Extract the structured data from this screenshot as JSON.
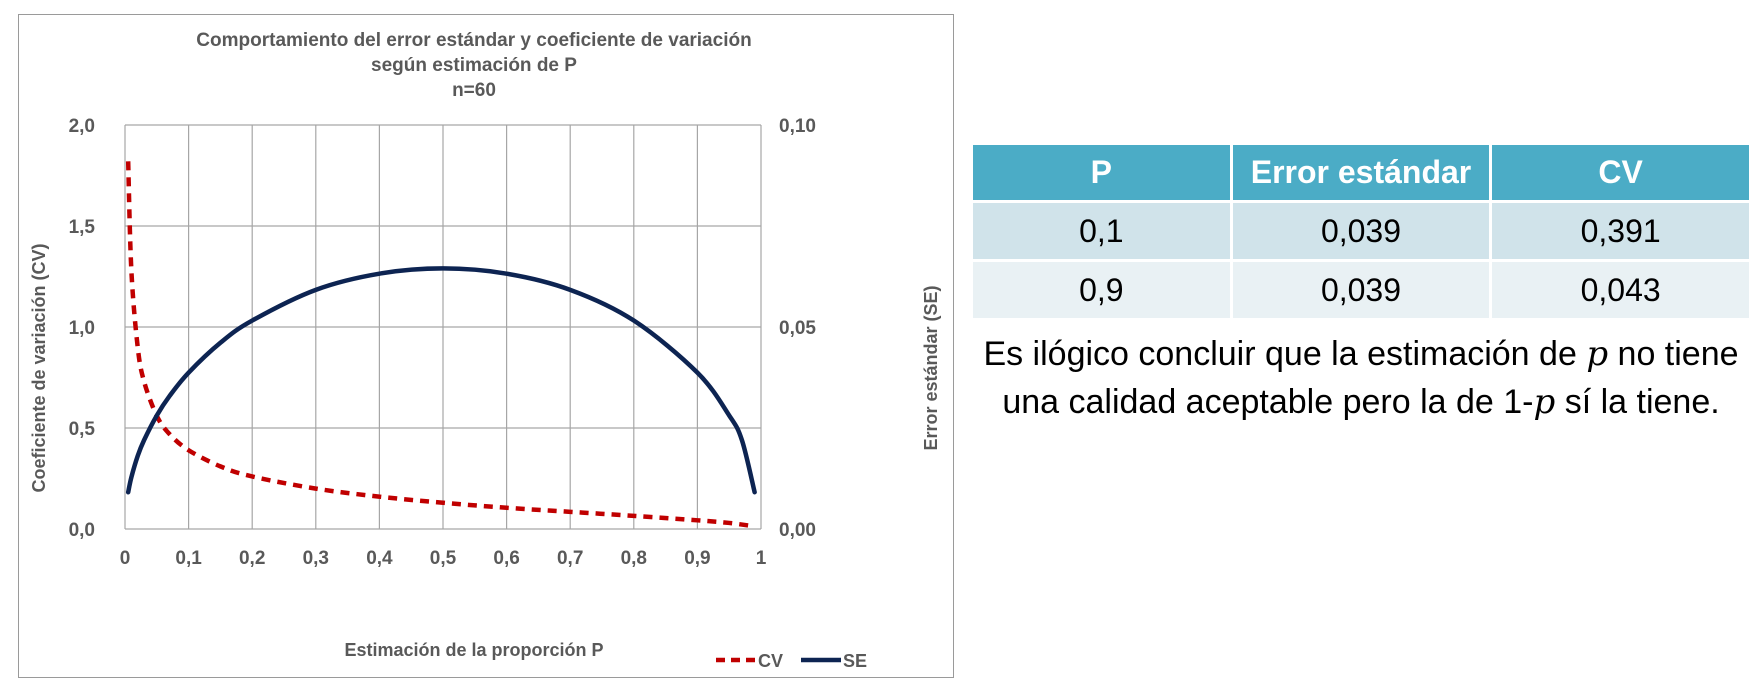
{
  "chart_data": {
    "type": "line",
    "title": [
      "Comportamiento del error estándar y coeficiente de variación",
      "según estimación de P",
      "n=60"
    ],
    "xlabel": "Estimación de la proporción P",
    "ylabel_left": "Coeficiente de variación (CV)",
    "ylabel_right": "Error estándar (SE)",
    "xlim": [
      0,
      1
    ],
    "ylim_left": [
      0,
      2
    ],
    "ylim_right": [
      0,
      0.1
    ],
    "x_ticks": [
      "0",
      "0,1",
      "0,2",
      "0,3",
      "0,4",
      "0,5",
      "0,6",
      "0,7",
      "0,8",
      "0,9",
      "1"
    ],
    "y_left_ticks": [
      "0,0",
      "0,5",
      "1,0",
      "1,5",
      "2,0"
    ],
    "y_right_ticks": [
      "0,00",
      "0,05",
      "0,10"
    ],
    "grid": true,
    "legend_position": "bottom-right",
    "n": 60,
    "series": [
      {
        "name": "CV",
        "axis": "left",
        "style": "dashed",
        "color": "#c00000",
        "x": [
          0.005,
          0.01,
          0.02,
          0.03,
          0.05,
          0.07,
          0.1,
          0.15,
          0.2,
          0.3,
          0.4,
          0.5,
          0.6,
          0.7,
          0.8,
          0.9,
          0.95,
          0.99
        ],
        "values": [
          1.82,
          1.28,
          0.9,
          0.73,
          0.56,
          0.47,
          0.39,
          0.31,
          0.26,
          0.2,
          0.16,
          0.13,
          0.105,
          0.085,
          0.065,
          0.043,
          0.03,
          0.013
        ]
      },
      {
        "name": "SE",
        "axis": "right",
        "style": "solid",
        "color": "#0d2452",
        "x": [
          0.005,
          0.01,
          0.02,
          0.03,
          0.05,
          0.07,
          0.1,
          0.15,
          0.2,
          0.3,
          0.4,
          0.5,
          0.6,
          0.7,
          0.8,
          0.9,
          0.95,
          0.97,
          0.99
        ],
        "values": [
          0.0091,
          0.0128,
          0.0181,
          0.022,
          0.0281,
          0.0329,
          0.0387,
          0.0461,
          0.0516,
          0.0592,
          0.0632,
          0.0645,
          0.0632,
          0.0592,
          0.0516,
          0.0387,
          0.0281,
          0.022,
          0.0091
        ]
      }
    ]
  },
  "table": {
    "headers": [
      "P",
      "Error estándar",
      "CV"
    ],
    "rows": [
      [
        "0,1",
        "0,039",
        "0,391"
      ],
      [
        "0,9",
        "0,039",
        "0,043"
      ]
    ],
    "header_color": "#4bacc6"
  },
  "conclusion": {
    "part1": "Es ilógico concluir que la estimación de",
    "var1": "p",
    "part2": "no tiene una calidad aceptable pero la de 1-",
    "var2": "p",
    "part3": "sí la tiene."
  }
}
